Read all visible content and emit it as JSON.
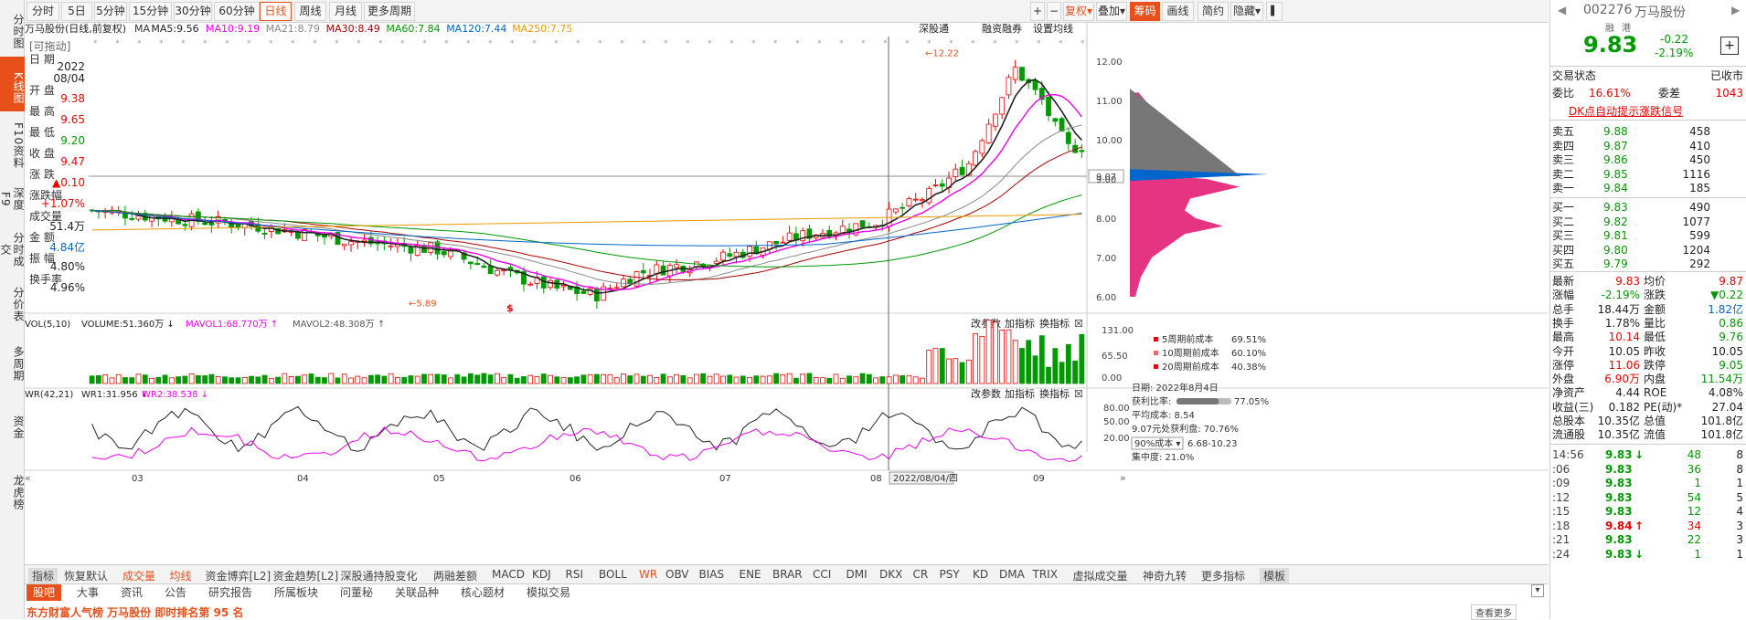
{
  "left_nav": [
    "分时图",
    "K线图",
    "F10资料",
    "深度F9",
    "分时成交",
    "分价表",
    "多周期",
    "资金",
    "龙虎榜"
  ],
  "left_nav_active": 1,
  "toolbar": {
    "periods": [
      "分时",
      "5日",
      "5分钟",
      "15分钟",
      "30分钟",
      "60分钟",
      "日线",
      "周线",
      "月线",
      "更多周期"
    ],
    "active_period": "日线",
    "right_buttons": [
      "+",
      "−",
      "复权",
      "叠加",
      "筹码",
      "画线",
      "简约",
      "隐藏"
    ]
  },
  "title_line": {
    "stock": "万马股份",
    "mode": "(日线,前复权)",
    "ma_items": [
      {
        "label": "MA",
        "color": "#333"
      },
      {
        "label": "MA5:9.56",
        "color": "#222"
      },
      {
        "label": "MA10:9.19",
        "color": "#e0e"
      },
      {
        "label": "MA21:8.79",
        "color": "#888"
      },
      {
        "label": "MA30:8.49",
        "color": "#a00"
      },
      {
        "label": "MA60:7.84",
        "color": "#090"
      },
      {
        "label": "MA120:7.44",
        "color": "#06c"
      },
      {
        "label": "MA250:7.75",
        "color": "#e90"
      }
    ],
    "right_links": [
      "深股通",
      "融资融券",
      "设置均线"
    ]
  },
  "info_panel": {
    "drag": "[可拖动]",
    "date_label": "日 期",
    "date_year": "2022",
    "date_md": "08/04",
    "open_label": "开 盘",
    "open": "9.38",
    "high_label": "最 高",
    "high": "9.65",
    "low_label": "最 低",
    "low": "9.20",
    "close_label": "收 盘",
    "close": "9.47",
    "chg_label": "涨 跌",
    "chg": "▲0.10",
    "pct_label": "涨跌幅",
    "pct": "+1.07%",
    "vol_label": "成交量",
    "vol": "51.4万",
    "amt_label": "金 额",
    "amt": "4.84亿",
    "amp_label": "振 幅",
    "amp": "4.80%",
    "turn_label": "换手率",
    "turn": "4.96%"
  },
  "price_axis": [
    "12.00",
    "11.00",
    "10.00",
    "9.07",
    "9.00",
    "8.00",
    "7.00",
    "6.00"
  ],
  "price_markers": {
    "high": "12.22",
    "low": "5.89",
    "cursor_price": "9.07"
  },
  "vol_panel": {
    "title": "VOL(5,10)",
    "volume": "VOLUME:51.360万",
    "mavol1": "MAVOL1:68.770万",
    "mavol2": "MAVOL2:48.308万",
    "axis": [
      "131.00",
      "65.50",
      "0.00"
    ],
    "links": [
      "改参数",
      "加指标",
      "换指标"
    ]
  },
  "wr_panel": {
    "title": "WR(42,21)",
    "wr1": "WR1:31.956",
    "wr2": "WR2:38.538",
    "axis": [
      "80.00",
      "50.00",
      "20.00"
    ],
    "links": [
      "改参数",
      "加指标",
      "换指标"
    ]
  },
  "time_axis": [
    "03",
    "04",
    "05",
    "06",
    "07",
    "08",
    "2022/08/04/四",
    "09"
  ],
  "chip_legend": [
    {
      "label": "5周期前成本",
      "value": "69.51%",
      "color": "#e00"
    },
    {
      "label": "10周期前成本",
      "value": "60.10%",
      "color": "#e66"
    },
    {
      "label": "20周期前成本",
      "value": "40.38%",
      "color": "#e00"
    }
  ],
  "chip_info": {
    "date": "日期: 2022年8月4日",
    "profit_label": "获利比率:",
    "profit": "77.05%",
    "profit_ratio": 0.7705,
    "avg": "平均成本: 8.54",
    "at_price": "9.07元处获利盘: 70.76%",
    "cost_select": "90%成本",
    "cost_range": "6.68-10.23",
    "concentration": "集中度: 21.0%"
  },
  "indicator_tabs": [
    "指标",
    "恢复默认",
    "成交量",
    "均线",
    "资金博弈[L2]",
    "资金趋势[L2]",
    "深股通持股变化",
    "两融差额",
    "MACD",
    "KDJ",
    "RSI",
    "BOLL",
    "WR",
    "OBV",
    "BIAS",
    "ENE",
    "BRAR",
    "CCI",
    "DMI",
    "DKX",
    "CR",
    "PSY",
    "KD",
    "DMA",
    "TRIX",
    "虚拟成交量",
    "神奇九转",
    "更多指标",
    "模板"
  ],
  "news_tabs": [
    "股吧",
    "大事",
    "资讯",
    "公告",
    "研究报告",
    "所属板块",
    "问董秘",
    "关联品种",
    "核心题材",
    "模拟交易"
  ],
  "news_text": "东方财富人气榜  万马股份  即时排名第 95 名",
  "news_more": "查看更多",
  "quote": {
    "code": "002276",
    "name": "万马股份",
    "tags": [
      "融",
      "港"
    ],
    "price": "9.83",
    "change": "-0.22",
    "pct": "-2.19%",
    "state_label": "交易状态",
    "state": "已收市",
    "wb_label": "委比",
    "wb": "16.61%",
    "wc_label": "委差",
    "wc": "1043",
    "dk_link": "DK点自动提示涨跌信号",
    "asks": [
      {
        "label": "卖五",
        "price": "9.88",
        "vol": "458"
      },
      {
        "label": "卖四",
        "price": "9.87",
        "vol": "410"
      },
      {
        "label": "卖三",
        "price": "9.86",
        "vol": "450"
      },
      {
        "label": "卖二",
        "price": "9.85",
        "vol": "1116"
      },
      {
        "label": "卖一",
        "price": "9.84",
        "vol": "185"
      }
    ],
    "bids": [
      {
        "label": "买一",
        "price": "9.83",
        "vol": "490"
      },
      {
        "label": "买二",
        "price": "9.82",
        "vol": "1077"
      },
      {
        "label": "买三",
        "price": "9.81",
        "vol": "599"
      },
      {
        "label": "买四",
        "price": "9.80",
        "vol": "1204"
      },
      {
        "label": "买五",
        "price": "9.79",
        "vol": "292"
      }
    ],
    "stats": [
      [
        "最新",
        "9.83",
        "r",
        "均价",
        "9.87",
        "r"
      ],
      [
        "涨幅",
        "-2.19%",
        "g",
        "涨跌",
        "▼0.22",
        "g"
      ],
      [
        "总手",
        "18.44万",
        "k",
        "金额",
        "1.82亿",
        "b"
      ],
      [
        "换手",
        "1.78%",
        "k",
        "量比",
        "0.86",
        "g"
      ],
      [
        "最高",
        "10.14",
        "r",
        "最低",
        "9.76",
        "g"
      ],
      [
        "今开",
        "10.05",
        "k",
        "昨收",
        "10.05",
        "k"
      ],
      [
        "涨停",
        "11.06",
        "r",
        "跌停",
        "9.05",
        "g"
      ],
      [
        "外盘",
        "6.90万",
        "r",
        "内盘",
        "11.54万",
        "g"
      ],
      [
        "净资产",
        "4.44",
        "k",
        "ROE",
        "4.08%",
        "k"
      ],
      [
        "收益(三)",
        "0.182",
        "k",
        "PE(动)*",
        "27.04",
        "k"
      ],
      [
        "总股本",
        "10.35亿",
        "k",
        "总值",
        "101.8亿",
        "k"
      ],
      [
        "流通股",
        "10.35亿",
        "k",
        "流值",
        "101.8亿",
        "k"
      ]
    ],
    "ticks": [
      {
        "time": "14:56",
        "price": "9.83",
        "arrow": "↓",
        "vol": "48",
        "n": "8"
      },
      {
        "time": ":06",
        "price": "9.83",
        "arrow": "",
        "vol": "36",
        "n": "8"
      },
      {
        "time": ":09",
        "price": "9.83",
        "arrow": "",
        "vol": "1",
        "n": "1"
      },
      {
        "time": ":12",
        "price": "9.83",
        "arrow": "",
        "vol": "54",
        "n": "5"
      },
      {
        "time": ":15",
        "price": "9.83",
        "arrow": "",
        "vol": "12",
        "n": "4"
      },
      {
        "time": ":18",
        "price": "9.84",
        "arrow": "↑",
        "vol": "34",
        "n": "3"
      },
      {
        "time": ":21",
        "price": "9.83",
        "arrow": "",
        "vol": "22",
        "n": "3"
      },
      {
        "time": ":24",
        "price": "9.83",
        "arrow": "↓",
        "vol": "1",
        "n": "1"
      }
    ]
  },
  "colors": {
    "up": "#e00",
    "down": "#090",
    "accent": "#e8501b",
    "ma5": "#222",
    "ma10": "#e0e",
    "ma21": "#888",
    "ma30": "#a00",
    "ma60": "#090",
    "ma120": "#06c",
    "ma250": "#e90"
  }
}
